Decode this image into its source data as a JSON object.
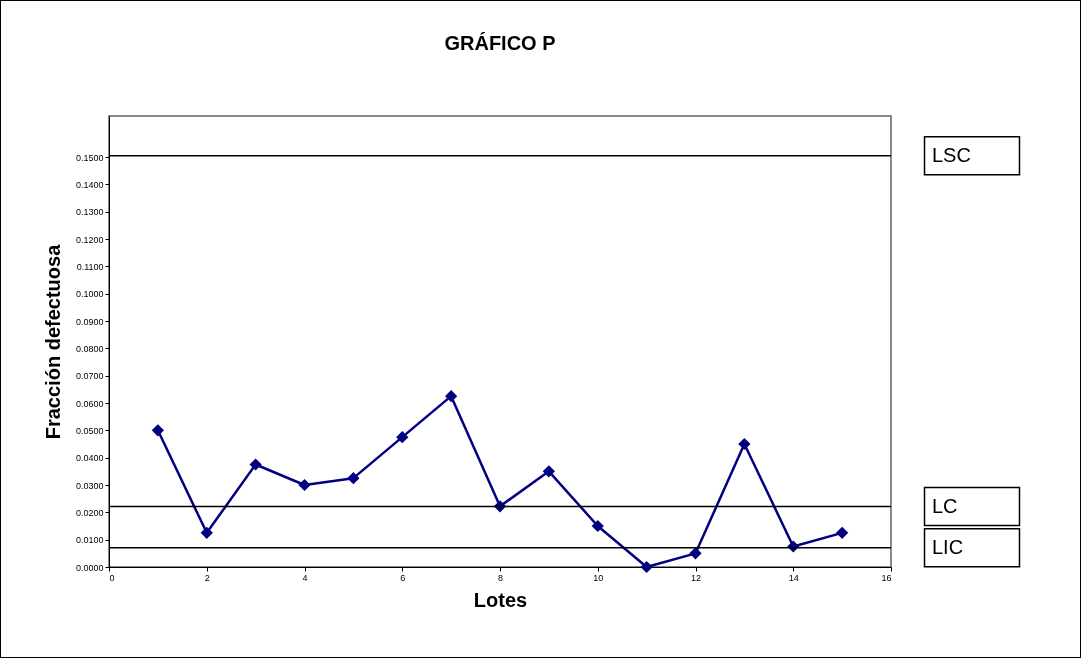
{
  "chart_data": {
    "type": "line",
    "title": "GRÁFICO P",
    "xlabel": "Lotes",
    "ylabel": "Fracción defectuosa",
    "x": [
      1,
      2,
      3,
      4,
      5,
      6,
      7,
      8,
      9,
      10,
      11,
      12,
      13,
      14,
      15
    ],
    "values": [
      0.05,
      0.0125,
      0.0375,
      0.03,
      0.0325,
      0.0475,
      0.0625,
      0.0222,
      0.035,
      0.015,
      0,
      0.005,
      0.045,
      0.0075,
      0.0125
    ],
    "color": "#000080",
    "marker": "diamond",
    "xlim": [
      0,
      16
    ],
    "xticks": [
      0,
      2,
      4,
      6,
      8,
      10,
      12,
      14,
      16
    ],
    "ylim": [
      0,
      0.165
    ],
    "yticks": [
      {
        "value": 0,
        "label": "0.0000"
      },
      {
        "value": 0.01,
        "label": "0.0100"
      },
      {
        "value": 0.02,
        "label": "0.0200"
      },
      {
        "value": 0.03,
        "label": "0.0300"
      },
      {
        "value": 0.04,
        "label": "0.0400"
      },
      {
        "value": 0.05,
        "label": "0.0500"
      },
      {
        "value": 0.06,
        "label": "0.0600"
      },
      {
        "value": 0.07,
        "label": "0.0700"
      },
      {
        "value": 0.08,
        "label": "0.0800"
      },
      {
        "value": 0.09,
        "label": "0.0900"
      },
      {
        "value": 0.1,
        "label": "0.1000"
      },
      {
        "value": 0.11,
        "label": "0.1100"
      },
      {
        "value": 0.12,
        "label": "0.1200"
      },
      {
        "value": 0.13,
        "label": "0.1300"
      },
      {
        "value": 0.14,
        "label": "0.1400"
      },
      {
        "value": 0.15,
        "label": "0.1500"
      }
    ],
    "ref_lines": [
      {
        "axis": "y",
        "value": 0.1505,
        "label": "LSC"
      },
      {
        "axis": "y",
        "value": 0.0221,
        "label": "LC"
      },
      {
        "axis": "y",
        "value": 0.007,
        "label": "LIC"
      }
    ]
  }
}
